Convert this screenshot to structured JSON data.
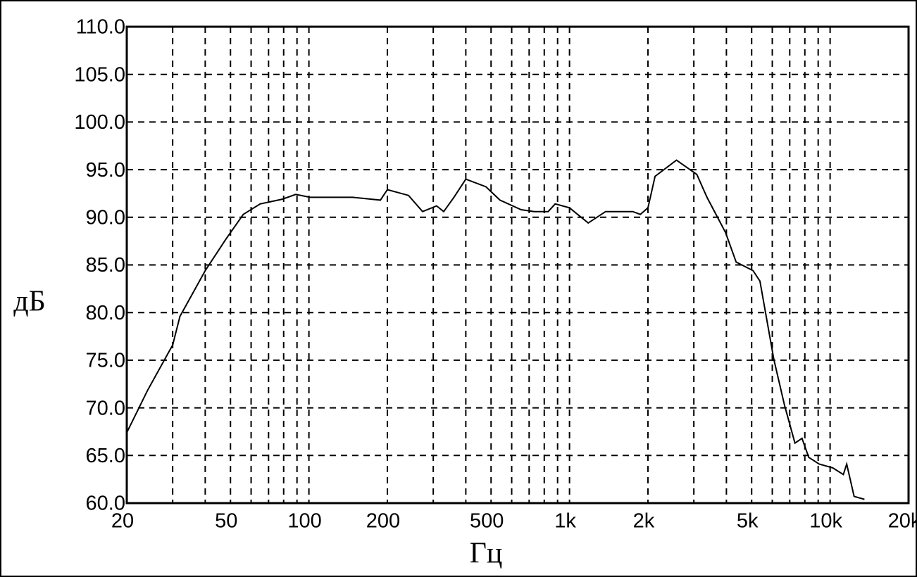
{
  "chart_data": {
    "type": "line",
    "xlabel": "Гц",
    "ylabel": "дБ",
    "xscale": "log",
    "grid": true,
    "color": "#000000",
    "xlim": [
      20,
      20000
    ],
    "ylim": [
      60,
      110
    ],
    "xticks": [
      20,
      50,
      100,
      200,
      500,
      {
        "value": 1000,
        "label": "1k"
      },
      {
        "value": 2000,
        "label": "2k"
      },
      {
        "value": 5000,
        "label": "5k"
      },
      {
        "value": 10000,
        "label": "10k"
      },
      {
        "value": 20000,
        "label": "20k"
      }
    ],
    "xminor": [
      30,
      40,
      60,
      70,
      80,
      90,
      300,
      400,
      600,
      700,
      800,
      900,
      3000,
      4000,
      6000,
      7000,
      8000,
      9000
    ],
    "yticks": [
      {
        "value": 60,
        "label": "60.0"
      },
      {
        "value": 65,
        "label": "65.0"
      },
      {
        "value": 70,
        "label": "70.0"
      },
      {
        "value": 75,
        "label": "75.0"
      },
      {
        "value": 80,
        "label": "80.0"
      },
      {
        "value": 85,
        "label": "85.0"
      },
      {
        "value": 90,
        "label": "90.0"
      },
      {
        "value": 95,
        "label": "95.0"
      },
      {
        "value": 100,
        "label": "100.0"
      },
      {
        "value": 105,
        "label": "105.0"
      },
      {
        "value": 110,
        "label": "110.0"
      }
    ],
    "x": [
      20,
      24,
      30,
      32,
      40,
      48,
      56,
      65,
      79,
      89,
      101,
      147,
      188,
      200,
      241,
      273,
      309,
      329,
      360,
      400,
      478,
      541,
      652,
      733,
      828,
      881,
      1000,
      1180,
      1375,
      1750,
      1870,
      2000,
      2130,
      2574,
      3080,
      3370,
      3970,
      4360,
      5060,
      5380,
      6080,
      6680,
      7330,
      7800,
      8280,
      9080,
      10240,
      11240,
      11580,
      12360,
      13550
    ],
    "values": [
      67.4,
      71.8,
      76.6,
      79.6,
      84.4,
      87.7,
      90.3,
      91.4,
      91.9,
      92.4,
      92.1,
      92.1,
      91.8,
      92.9,
      92.3,
      90.6,
      91.2,
      90.6,
      92.1,
      94.0,
      93.2,
      91.8,
      90.8,
      90.6,
      90.6,
      91.4,
      91.0,
      89.4,
      90.6,
      90.6,
      90.3,
      91.0,
      94.3,
      96.0,
      94.5,
      92.1,
      88.4,
      85.3,
      84.4,
      83.3,
      75.1,
      70.3,
      66.3,
      66.8,
      64.8,
      64.1,
      63.7,
      63.0,
      64.1,
      60.7,
      60.4
    ]
  }
}
